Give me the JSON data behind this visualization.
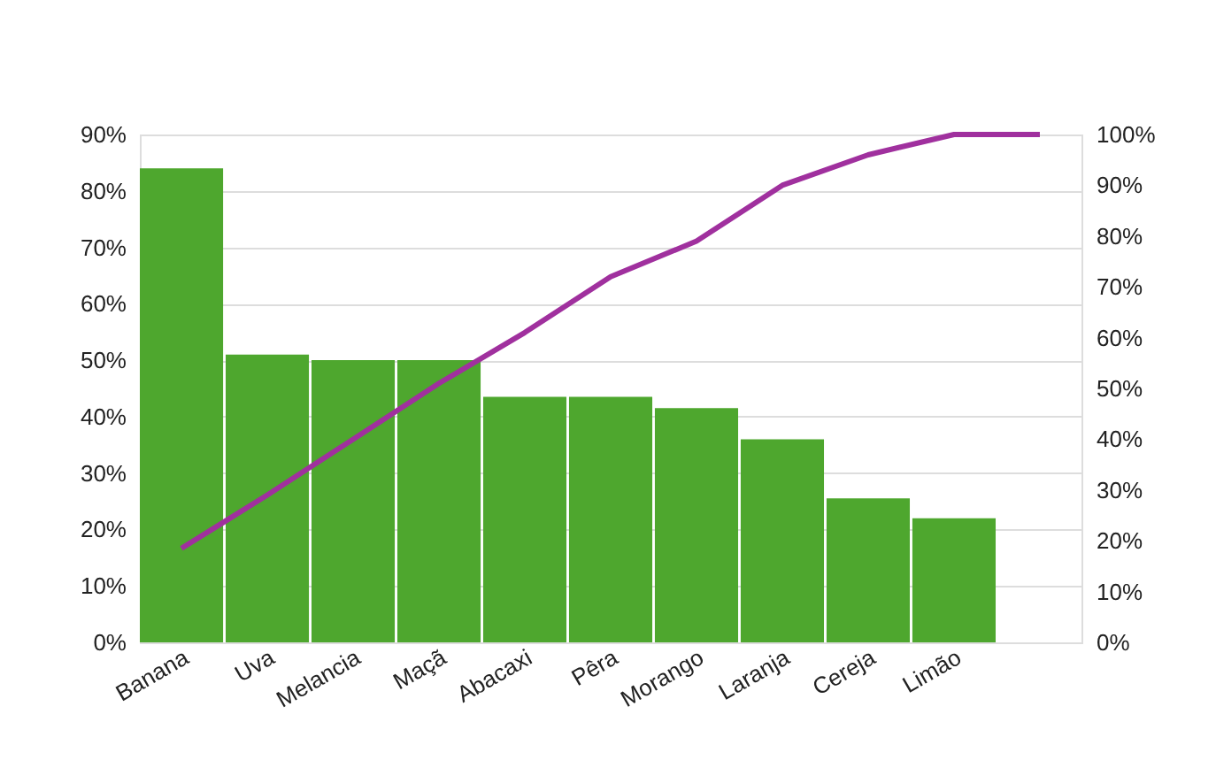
{
  "chart_data": {
    "type": "bar",
    "categories": [
      "Banana",
      "Uva",
      "Melancia",
      "Maçã",
      "Abacaxi",
      "Pêra",
      "Morango",
      "Laranja",
      "Cereja",
      "Limão",
      null
    ],
    "series": [
      {
        "color": "#4ea72e",
        "values": [
          84,
          51,
          50,
          50,
          43.5,
          43.5,
          41.5,
          36,
          25.5,
          22,
          null
        ]
      },
      {
        "type": "line",
        "axis": "y2",
        "color": "#a0309e",
        "values": [
          18.5,
          29,
          40,
          51,
          61,
          72,
          79,
          90,
          96,
          100,
          100
        ]
      }
    ],
    "ylim": [
      0,
      90
    ],
    "yticks": [
      {
        "value": 0,
        "label": "0%"
      },
      {
        "value": 10,
        "label": "10%"
      },
      {
        "value": 20,
        "label": "20%"
      },
      {
        "value": 30,
        "label": "30%"
      },
      {
        "value": 40,
        "label": "40%"
      },
      {
        "value": 50,
        "label": "50%"
      },
      {
        "value": 60,
        "label": "60%"
      },
      {
        "value": 70,
        "label": "70%"
      },
      {
        "value": 80,
        "label": "80%"
      },
      {
        "value": 90,
        "label": "90%"
      }
    ],
    "y2lim": [
      0,
      100
    ],
    "y2ticks": [
      {
        "value": 0,
        "label": "0%"
      },
      {
        "value": 10,
        "label": "10%"
      },
      {
        "value": 20,
        "label": "20%"
      },
      {
        "value": 30,
        "label": "30%"
      },
      {
        "value": 40,
        "label": "40%"
      },
      {
        "value": 50,
        "label": "50%"
      },
      {
        "value": 60,
        "label": "60%"
      },
      {
        "value": 70,
        "label": "70%"
      },
      {
        "value": 80,
        "label": "80%"
      },
      {
        "value": 90,
        "label": "90%"
      },
      {
        "value": 100,
        "label": "100%"
      }
    ],
    "grid": "y",
    "line_style": "solid",
    "marker": "none"
  }
}
